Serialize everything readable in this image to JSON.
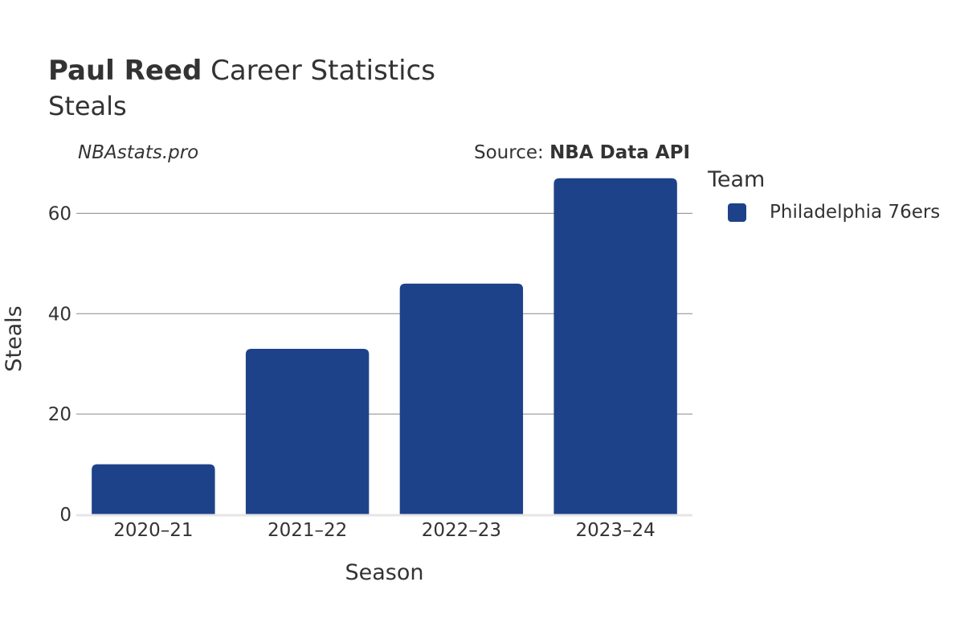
{
  "header": {
    "title_bold": "Paul Reed",
    "title_rest": "Career Statistics",
    "subtitle": "Steals",
    "watermark": "NBAstats.pro",
    "source_prefix": "Source:",
    "source_name": "NBA Data API"
  },
  "legend": {
    "title": "Team",
    "items": [
      {
        "label": "Philadelphia 76ers",
        "color": "#1d4289"
      }
    ]
  },
  "chart_data": {
    "type": "bar",
    "title": "Paul Reed Career Statistics",
    "subtitle": "Steals",
    "xlabel": "Season",
    "ylabel": "Steals",
    "categories": [
      "2020–21",
      "2021–22",
      "2022–23",
      "2023–24"
    ],
    "series": [
      {
        "name": "Philadelphia 76ers",
        "values": [
          10,
          33,
          46,
          67
        ],
        "color": "#1d4289"
      }
    ],
    "ylim": [
      0,
      70
    ],
    "yticks": [
      0,
      20,
      40,
      60
    ],
    "grid": true,
    "legend_position": "right"
  }
}
